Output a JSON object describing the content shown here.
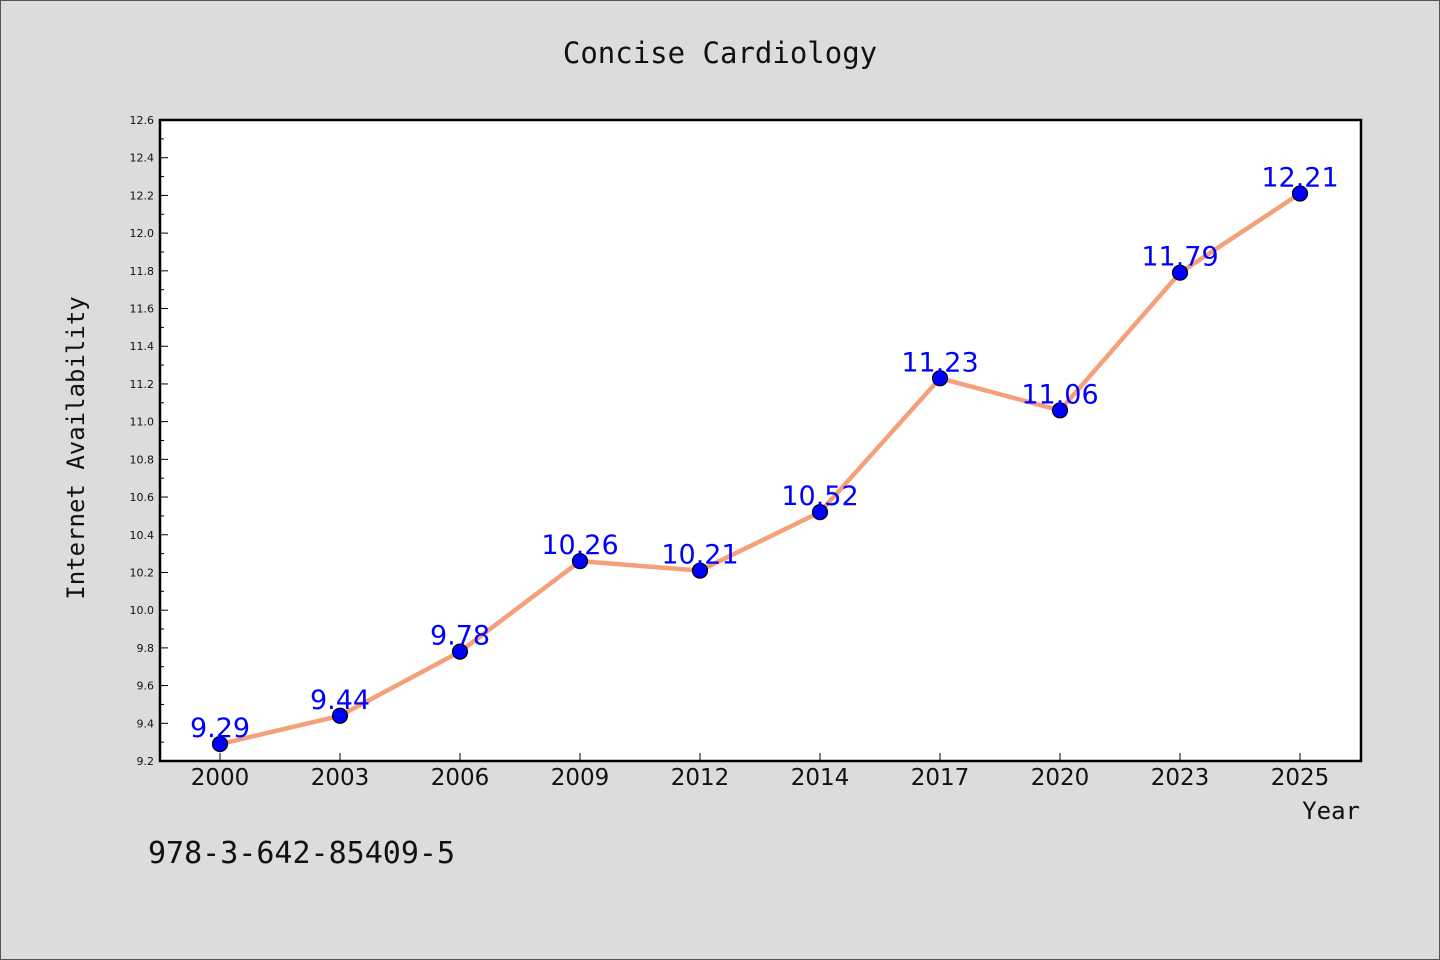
{
  "chart_data": {
    "type": "line",
    "title": "Concise Cardiology",
    "xlabel": "Year",
    "ylabel": "Internet Availability",
    "categories": [
      "2000",
      "2003",
      "2006",
      "2009",
      "2012",
      "2014",
      "2017",
      "2020",
      "2023",
      "2025"
    ],
    "series": [
      {
        "values": [
          9.29,
          9.44,
          9.78,
          10.26,
          10.21,
          10.52,
          11.23,
          11.06,
          11.79,
          12.21
        ]
      }
    ],
    "data_labels": [
      "9.29",
      "9.44",
      "9.78",
      "10.26",
      "10.21",
      "10.52",
      "11.23",
      "11.06",
      "11.79",
      "12.21"
    ],
    "ylim": [
      9.2,
      12.6
    ],
    "yticks": [
      "9.2",
      "9.4",
      "9.6",
      "9.8",
      "10.0",
      "10.2",
      "10.4",
      "10.6",
      "10.8",
      "11.0",
      "11.2",
      "11.4",
      "11.6",
      "11.8",
      "12.0",
      "12.2",
      "12.4",
      "12.6"
    ],
    "grid": false,
    "legend": "none",
    "colors": {
      "line": "#f4a07a",
      "marker": "#0000ff",
      "label": "#0000ff",
      "plot_bg": "#ffffff",
      "page_bg": "#dcdcdc"
    }
  },
  "footer": {
    "isbn": "978-3-642-85409-5"
  }
}
